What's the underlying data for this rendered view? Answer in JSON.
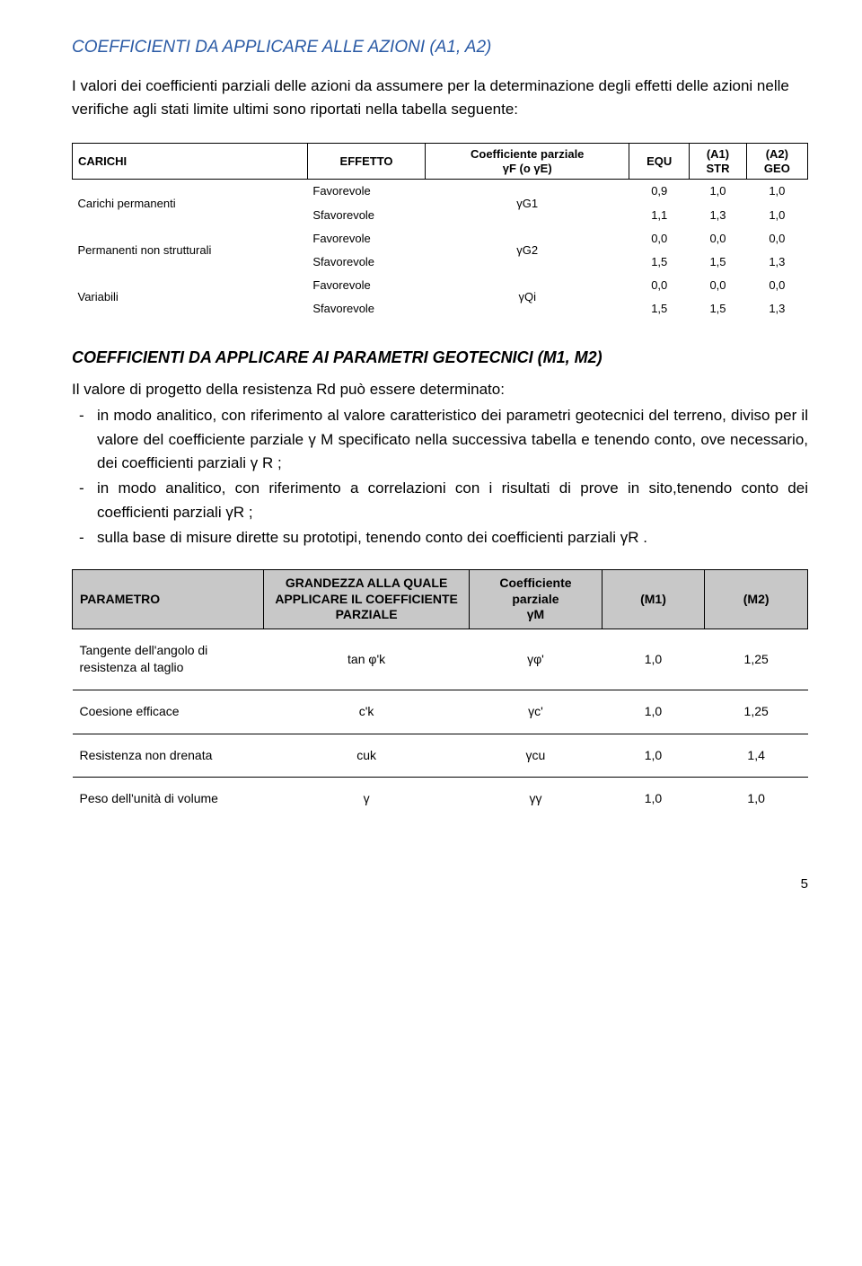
{
  "section1": {
    "title": "COEFFICIENTI DA APPLICARE ALLE AZIONI (A1, A2)",
    "intro": "I valori dei coefficienti parziali delle azioni da assumere per la determinazione degli effetti delle azioni nelle verifiche agli stati limite ultimi sono riportati nella tabella seguente:"
  },
  "table1": {
    "headers": {
      "c1": "CARICHI",
      "c2": "EFFETTO",
      "c3a": "Coefficiente parziale",
      "c3b": "γF (o γE)",
      "c4": "EQU",
      "c5a": "(A1)",
      "c5b": "STR",
      "c6a": "(A2)",
      "c6b": "GEO"
    },
    "groups": [
      {
        "label": "Carichi permanenti",
        "coef": "γG1",
        "rows": [
          {
            "eff": "Favorevole",
            "equ": "0,9",
            "a1": "1,0",
            "a2": "1,0"
          },
          {
            "eff": "Sfavorevole",
            "equ": "1,1",
            "a1": "1,3",
            "a2": "1,0"
          }
        ]
      },
      {
        "label": "Permanenti non strutturali",
        "coef": "γG2",
        "rows": [
          {
            "eff": "Favorevole",
            "equ": "0,0",
            "a1": "0,0",
            "a2": "0,0"
          },
          {
            "eff": "Sfavorevole",
            "equ": "1,5",
            "a1": "1,5",
            "a2": "1,3"
          }
        ]
      },
      {
        "label": "Variabili",
        "coef": "γQi",
        "rows": [
          {
            "eff": "Favorevole",
            "equ": "0,0",
            "a1": "0,0",
            "a2": "0,0"
          },
          {
            "eff": "Sfavorevole",
            "equ": "1,5",
            "a1": "1,5",
            "a2": "1,3"
          }
        ]
      }
    ]
  },
  "section2": {
    "title": "COEFFICIENTI DA APPLICARE AI PARAMETRI GEOTECNICI (M1, M2)",
    "lead": "Il valore di progetto della resistenza Rd può essere determinato:",
    "bullets": [
      "in modo analitico, con riferimento al valore caratteristico dei parametri geotecnici del terreno, diviso per il valore del coefficiente parziale γ M specificato nella successiva tabella e tenendo conto, ove necessario, dei coefficienti parziali γ R ;",
      "in modo analitico, con riferimento a correlazioni con i risultati di prove in sito,tenendo conto dei coefficienti parziali γR ;",
      "sulla base di misure dirette su prototipi, tenendo conto dei coefficienti parziali γR ."
    ]
  },
  "table2": {
    "headers": {
      "c1": "PARAMETRO",
      "c2": "GRANDEZZA ALLA QUALE APPLICARE IL COEFFICIENTE PARZIALE",
      "c3a": "Coefficiente parziale",
      "c3b": "γM",
      "c4": "(M1)",
      "c5": "(M2)"
    },
    "rows": [
      {
        "p": "Tangente dell'angolo di resistenza al taglio",
        "g": "tan φ'k",
        "coef": "γφ'",
        "m1": "1,0",
        "m2": "1,25"
      },
      {
        "p": "Coesione efficace",
        "g": "c'k",
        "coef": "γc'",
        "m1": "1,0",
        "m2": "1,25"
      },
      {
        "p": "Resistenza non drenata",
        "g": "cuk",
        "coef": "γcu",
        "m1": "1,0",
        "m2": "1,4"
      },
      {
        "p": "Peso dell'unità di volume",
        "g": "γ",
        "coef": "γγ",
        "m1": "1,0",
        "m2": "1,0"
      }
    ]
  },
  "pagenum": "5"
}
